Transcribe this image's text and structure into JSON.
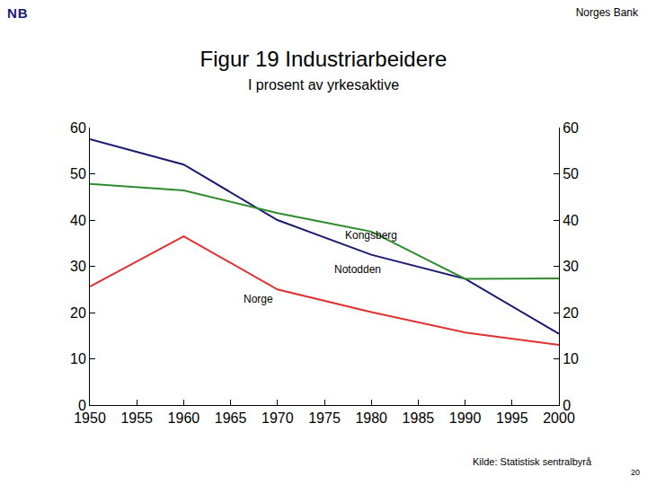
{
  "page": {
    "logo": "NB",
    "org": "Norges Bank",
    "source": "Kilde: Statistisk sentralbyrå",
    "page_number": "20"
  },
  "chart_data": {
    "type": "line",
    "title": "Figur 19 Industriarbeidere",
    "subtitle": "I prosent av yrkesaktive",
    "x": [
      1950,
      1960,
      1970,
      1980,
      1990,
      2000
    ],
    "series": [
      {
        "name": "Notodden",
        "color": "#1a1a6e",
        "values": [
          57.5,
          52,
          40,
          32.5,
          27.3,
          15.4
        ],
        "label_x": 1978.5,
        "label_y": 29.3
      },
      {
        "name": "Kongsberg",
        "color": "#2e8b2e",
        "values": [
          47.8,
          46.4,
          41.5,
          37.5,
          27.3,
          27.4
        ],
        "label_x": 1980,
        "label_y": 36.7
      },
      {
        "name": "Norge",
        "color": "#e03030",
        "values": [
          25.6,
          36.5,
          25,
          20.1,
          15.7,
          13
        ],
        "label_x": 1968,
        "label_y": 22.9
      }
    ],
    "xlim": [
      1950,
      2000
    ],
    "xticks": [
      1950,
      1955,
      1960,
      1965,
      1970,
      1975,
      1980,
      1985,
      1990,
      1995,
      2000
    ],
    "ylim": [
      0,
      60
    ],
    "yticks": [
      0,
      10,
      20,
      30,
      40,
      50,
      60
    ],
    "y2lim": [
      0,
      60
    ],
    "y2ticks": [
      0,
      10,
      20,
      30,
      40,
      50,
      60
    ],
    "grid": false,
    "line_style": "solid"
  }
}
